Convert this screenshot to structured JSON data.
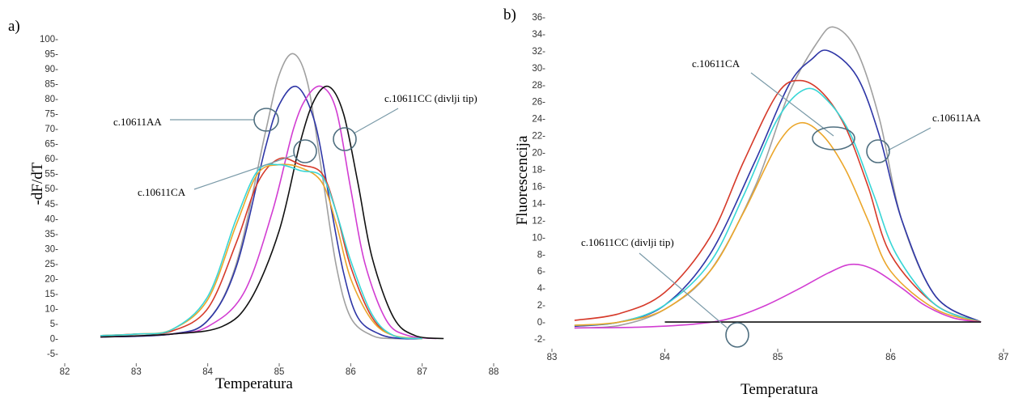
{
  "chart_data": [
    {
      "panel_label": "a)",
      "type": "line",
      "xlabel": "Temperatura",
      "ylabel": "-dF/dT",
      "xlim": [
        82,
        88
      ],
      "ylim": [
        -5,
        100
      ],
      "xticks": [
        82,
        83,
        84,
        85,
        86,
        87,
        88
      ],
      "yticks": [
        -5,
        0,
        5,
        10,
        15,
        20,
        25,
        30,
        35,
        40,
        45,
        50,
        55,
        60,
        65,
        70,
        75,
        80,
        85,
        90,
        95,
        100
      ],
      "series": [
        {
          "color": "#a0a0a0",
          "x": [
            82.5,
            83.5,
            84.0,
            84.4,
            84.8,
            85.0,
            85.2,
            85.4,
            85.6,
            85.8,
            86.0,
            86.3,
            86.6,
            87.0
          ],
          "y": [
            0.5,
            1.5,
            6,
            25,
            68,
            88,
            95,
            85,
            55,
            24,
            7,
            1,
            0,
            0
          ]
        },
        {
          "color": "#2e36a6",
          "x": [
            82.5,
            83.5,
            84.0,
            84.4,
            84.8,
            85.0,
            85.25,
            85.5,
            85.7,
            85.9,
            86.1,
            86.4,
            86.7,
            87.0
          ],
          "y": [
            0.5,
            1.5,
            6,
            24,
            63,
            78,
            84,
            72,
            47,
            22,
            7,
            1.5,
            0,
            0
          ]
        },
        {
          "color": "#d23dd2",
          "x": [
            82.5,
            83.5,
            84.0,
            84.5,
            84.9,
            85.2,
            85.4,
            85.6,
            85.8,
            86.0,
            86.2,
            86.5,
            86.8,
            87.2
          ],
          "y": [
            0.5,
            1.5,
            4,
            15,
            42,
            70,
            81,
            84,
            76,
            50,
            25,
            6,
            1,
            0
          ]
        },
        {
          "color": "#111111",
          "x": [
            82.5,
            83.5,
            84.2,
            84.6,
            85.0,
            85.3,
            85.5,
            85.7,
            85.9,
            86.1,
            86.3,
            86.6,
            86.9,
            87.3
          ],
          "y": [
            0.5,
            1.5,
            4,
            13,
            36,
            66,
            80,
            84,
            75,
            52,
            27,
            7,
            1,
            0
          ]
        },
        {
          "color": "#d63a2a",
          "x": [
            82.5,
            83.0,
            83.5,
            84.0,
            84.4,
            84.7,
            85.0,
            85.3,
            85.6,
            85.8,
            86.0,
            86.3,
            86.6,
            87.0
          ],
          "y": [
            1,
            1.5,
            2.5,
            10,
            32,
            52,
            60,
            58,
            55,
            42,
            24,
            7,
            1,
            0
          ]
        },
        {
          "color": "#eba62a",
          "x": [
            82.5,
            83.0,
            83.5,
            84.0,
            84.4,
            84.7,
            85.0,
            85.3,
            85.6,
            85.8,
            86.0,
            86.3,
            86.6,
            87.0
          ],
          "y": [
            1,
            1.5,
            3,
            13,
            38,
            55,
            58,
            57,
            52,
            38,
            20,
            6,
            1,
            0
          ]
        },
        {
          "color": "#38d6d6",
          "x": [
            82.5,
            83.0,
            83.5,
            84.0,
            84.4,
            84.7,
            85.0,
            85.3,
            85.6,
            85.8,
            86.0,
            86.3,
            86.6,
            87.0
          ],
          "y": [
            1,
            1.5,
            3,
            14,
            40,
            56,
            58,
            56,
            54,
            42,
            26,
            8,
            1,
            0
          ]
        }
      ],
      "annotations": [
        {
          "text": "c.10611AA"
        },
        {
          "text": "c.10611CC (divlji tip)"
        },
        {
          "text": "c.10611CA"
        }
      ]
    },
    {
      "panel_label": "b)",
      "type": "line",
      "xlabel": "Temperatura",
      "ylabel": "Fluorescencija",
      "xlim": [
        83,
        87
      ],
      "ylim": [
        -2,
        36
      ],
      "xticks": [
        83,
        84,
        85,
        86,
        87
      ],
      "yticks": [
        -2,
        0,
        2,
        4,
        6,
        8,
        10,
        12,
        14,
        16,
        18,
        20,
        22,
        24,
        26,
        28,
        30,
        32,
        34,
        36
      ],
      "series": [
        {
          "color": "#a0a0a0",
          "x": [
            83.2,
            83.6,
            84.0,
            84.4,
            84.8,
            85.1,
            85.35,
            85.5,
            85.7,
            85.9,
            86.1,
            86.4,
            86.8
          ],
          "y": [
            -0.7,
            -0.4,
            1.5,
            6,
            16,
            27,
            33,
            34.8,
            32,
            24,
            12,
            3,
            0
          ]
        },
        {
          "color": "#2e36a6",
          "x": [
            83.2,
            83.6,
            84.0,
            84.4,
            84.8,
            85.1,
            85.3,
            85.45,
            85.7,
            85.9,
            86.1,
            86.4,
            86.8
          ],
          "y": [
            -0.5,
            0,
            2,
            8,
            19,
            28,
            31,
            32,
            29,
            22,
            12,
            3,
            0
          ]
        },
        {
          "color": "#d63a2a",
          "x": [
            83.2,
            83.6,
            84.0,
            84.4,
            84.7,
            85.0,
            85.2,
            85.4,
            85.6,
            85.8,
            86.0,
            86.4,
            86.8
          ],
          "y": [
            0.2,
            1,
            3.5,
            10,
            19,
            27,
            28.5,
            27,
            23,
            16,
            8,
            2,
            0
          ]
        },
        {
          "color": "#38d6d6",
          "x": [
            83.2,
            83.6,
            84.0,
            84.4,
            84.7,
            85.0,
            85.25,
            85.45,
            85.65,
            85.85,
            86.05,
            86.4,
            86.8
          ],
          "y": [
            -0.4,
            0,
            2,
            7,
            15,
            24,
            27.5,
            26,
            22,
            15,
            8,
            2,
            0
          ]
        },
        {
          "color": "#eba62a",
          "x": [
            83.2,
            83.6,
            84.0,
            84.4,
            84.7,
            85.0,
            85.2,
            85.4,
            85.6,
            85.8,
            86.0,
            86.4,
            86.8
          ],
          "y": [
            -0.4,
            0,
            1.5,
            6,
            13,
            21,
            23.5,
            22,
            18,
            12,
            6,
            1.5,
            0
          ]
        },
        {
          "color": "#d23dd2",
          "x": [
            83.2,
            83.8,
            84.3,
            84.6,
            84.9,
            85.2,
            85.45,
            85.65,
            85.85,
            86.1,
            86.3,
            86.55,
            86.8
          ],
          "y": [
            -0.7,
            -0.6,
            -0.2,
            0.5,
            2,
            4,
            5.8,
            6.8,
            6.2,
            4,
            2,
            0.5,
            0
          ]
        },
        {
          "color": "#111111",
          "x": [
            84.0,
            86.8
          ],
          "y": [
            0,
            0
          ]
        }
      ],
      "annotations": [
        {
          "text": "c.10611CA"
        },
        {
          "text": "c.10611AA"
        },
        {
          "text": "c.10611CC (divlji tip)"
        }
      ]
    }
  ]
}
